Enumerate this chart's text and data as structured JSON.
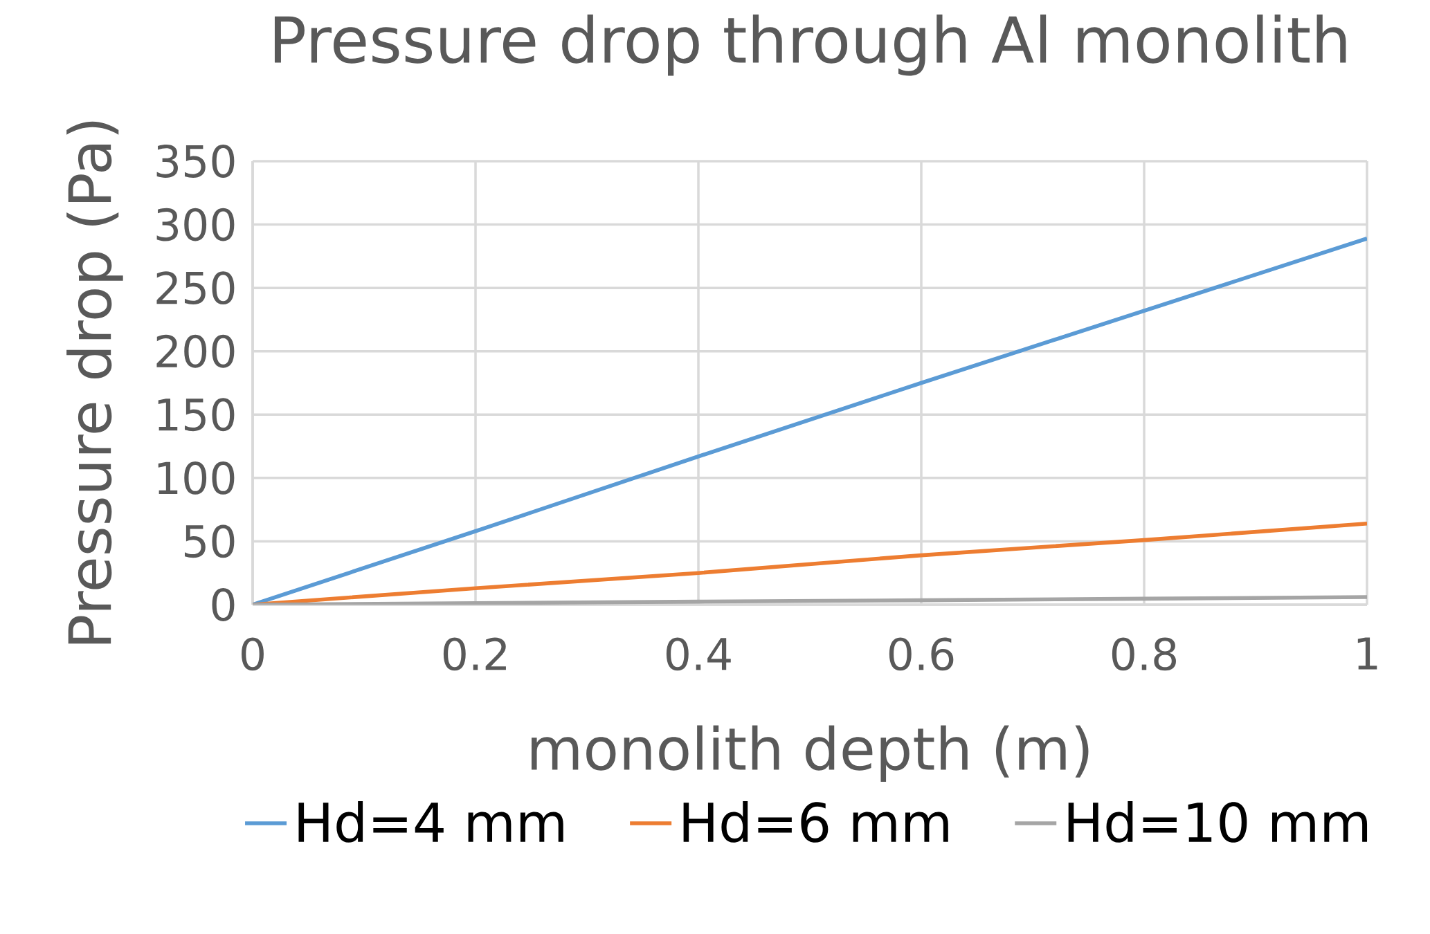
{
  "chart_data": {
    "type": "line",
    "title": "Pressure drop through Al monolith",
    "xlabel": "monolith depth (m)",
    "ylabel": "Pressure drop (Pa)",
    "x": [
      0,
      0.2,
      0.4,
      0.6,
      0.8,
      1
    ],
    "series": [
      {
        "name": "Hd=4 mm",
        "color": "#5b9bd5",
        "values": [
          0,
          58,
          117,
          175,
          232,
          289
        ]
      },
      {
        "name": "Hd=6 mm",
        "color": "#ed7d31",
        "values": [
          0,
          13,
          25,
          39,
          51,
          64
        ]
      },
      {
        "name": "Hd=10 mm",
        "color": "#a5a5a5",
        "values": [
          0,
          1.2,
          2.4,
          3.5,
          4.7,
          6
        ]
      }
    ],
    "xlim": [
      0,
      1
    ],
    "ylim": [
      0,
      350
    ],
    "xticks": [
      0,
      0.2,
      0.4,
      0.6,
      0.8,
      1
    ],
    "yticks": [
      0,
      50,
      100,
      150,
      200,
      250,
      300,
      350
    ],
    "grid": true,
    "legend": "bottom",
    "marker": "none",
    "line_style": "solid"
  }
}
